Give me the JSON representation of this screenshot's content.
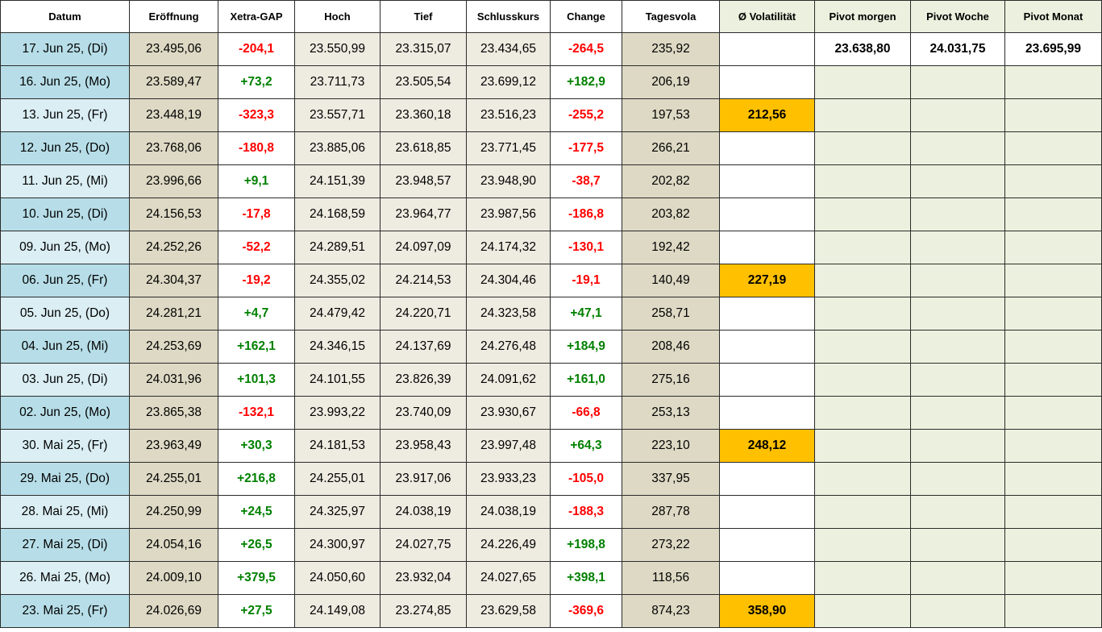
{
  "headers": [
    "Datum",
    "Eröffnung",
    "Xetra-GAP",
    "Hoch",
    "Tief",
    "Schlusskurs",
    "Change",
    "Tagesvola",
    "Ø Volatilität",
    "Pivot morgen",
    "Pivot Woche",
    "Pivot Monat"
  ],
  "rows": [
    {
      "date": "17. Jun 25, (Di)",
      "open": "23.495,06",
      "gap": "-204,1",
      "high": "23.550,99",
      "low": "23.315,07",
      "close": "23.434,65",
      "change": "-264,5",
      "vola": "235,92",
      "avg": "",
      "pm": "23.638,80",
      "pw": "24.031,75",
      "pmo": "23.695,99"
    },
    {
      "date": "16. Jun 25, (Mo)",
      "open": "23.589,47",
      "gap": "+73,2",
      "high": "23.711,73",
      "low": "23.505,54",
      "close": "23.699,12",
      "change": "+182,9",
      "vola": "206,19",
      "avg": "",
      "pm": "",
      "pw": "",
      "pmo": ""
    },
    {
      "date": "13. Jun 25, (Fr)",
      "open": "23.448,19",
      "gap": "-323,3",
      "high": "23.557,71",
      "low": "23.360,18",
      "close": "23.516,23",
      "change": "-255,2",
      "vola": "197,53",
      "avg": "212,56",
      "pm": "",
      "pw": "",
      "pmo": ""
    },
    {
      "date": "12. Jun 25, (Do)",
      "open": "23.768,06",
      "gap": "-180,8",
      "high": "23.885,06",
      "low": "23.618,85",
      "close": "23.771,45",
      "change": "-177,5",
      "vola": "266,21",
      "avg": "",
      "pm": "",
      "pw": "",
      "pmo": ""
    },
    {
      "date": "11. Jun 25, (Mi)",
      "open": "23.996,66",
      "gap": "+9,1",
      "high": "24.151,39",
      "low": "23.948,57",
      "close": "23.948,90",
      "change": "-38,7",
      "vola": "202,82",
      "avg": "",
      "pm": "",
      "pw": "",
      "pmo": ""
    },
    {
      "date": "10. Jun 25, (Di)",
      "open": "24.156,53",
      "gap": "-17,8",
      "high": "24.168,59",
      "low": "23.964,77",
      "close": "23.987,56",
      "change": "-186,8",
      "vola": "203,82",
      "avg": "",
      "pm": "",
      "pw": "",
      "pmo": ""
    },
    {
      "date": "09. Jun 25, (Mo)",
      "open": "24.252,26",
      "gap": "-52,2",
      "high": "24.289,51",
      "low": "24.097,09",
      "close": "24.174,32",
      "change": "-130,1",
      "vola": "192,42",
      "avg": "",
      "pm": "",
      "pw": "",
      "pmo": ""
    },
    {
      "date": "06. Jun 25, (Fr)",
      "open": "24.304,37",
      "gap": "-19,2",
      "high": "24.355,02",
      "low": "24.214,53",
      "close": "24.304,46",
      "change": "-19,1",
      "vola": "140,49",
      "avg": "227,19",
      "pm": "",
      "pw": "",
      "pmo": ""
    },
    {
      "date": "05. Jun 25, (Do)",
      "open": "24.281,21",
      "gap": "+4,7",
      "high": "24.479,42",
      "low": "24.220,71",
      "close": "24.323,58",
      "change": "+47,1",
      "vola": "258,71",
      "avg": "",
      "pm": "",
      "pw": "",
      "pmo": ""
    },
    {
      "date": "04. Jun 25, (Mi)",
      "open": "24.253,69",
      "gap": "+162,1",
      "high": "24.346,15",
      "low": "24.137,69",
      "close": "24.276,48",
      "change": "+184,9",
      "vola": "208,46",
      "avg": "",
      "pm": "",
      "pw": "",
      "pmo": ""
    },
    {
      "date": "03. Jun 25, (Di)",
      "open": "24.031,96",
      "gap": "+101,3",
      "high": "24.101,55",
      "low": "23.826,39",
      "close": "24.091,62",
      "change": "+161,0",
      "vola": "275,16",
      "avg": "",
      "pm": "",
      "pw": "",
      "pmo": ""
    },
    {
      "date": "02. Jun 25, (Mo)",
      "open": "23.865,38",
      "gap": "-132,1",
      "high": "23.993,22",
      "low": "23.740,09",
      "close": "23.930,67",
      "change": "-66,8",
      "vola": "253,13",
      "avg": "",
      "pm": "",
      "pw": "",
      "pmo": ""
    },
    {
      "date": "30. Mai 25, (Fr)",
      "open": "23.963,49",
      "gap": "+30,3",
      "high": "24.181,53",
      "low": "23.958,43",
      "close": "23.997,48",
      "change": "+64,3",
      "vola": "223,10",
      "avg": "248,12",
      "pm": "",
      "pw": "",
      "pmo": ""
    },
    {
      "date": "29. Mai 25, (Do)",
      "open": "24.255,01",
      "gap": "+216,8",
      "high": "24.255,01",
      "low": "23.917,06",
      "close": "23.933,23",
      "change": "-105,0",
      "vola": "337,95",
      "avg": "",
      "pm": "",
      "pw": "",
      "pmo": ""
    },
    {
      "date": "28. Mai 25, (Mi)",
      "open": "24.250,99",
      "gap": "+24,5",
      "high": "24.325,97",
      "low": "24.038,19",
      "close": "24.038,19",
      "change": "-188,3",
      "vola": "287,78",
      "avg": "",
      "pm": "",
      "pw": "",
      "pmo": ""
    },
    {
      "date": "27. Mai 25, (Di)",
      "open": "24.054,16",
      "gap": "+26,5",
      "high": "24.300,97",
      "low": "24.027,75",
      "close": "24.226,49",
      "change": "+198,8",
      "vola": "273,22",
      "avg": "",
      "pm": "",
      "pw": "",
      "pmo": ""
    },
    {
      "date": "26. Mai 25, (Mo)",
      "open": "24.009,10",
      "gap": "+379,5",
      "high": "24.050,60",
      "low": "23.932,04",
      "close": "24.027,65",
      "change": "+398,1",
      "vola": "118,56",
      "avg": "",
      "pm": "",
      "pw": "",
      "pmo": ""
    },
    {
      "date": "23. Mai 25, (Fr)",
      "open": "24.026,69",
      "gap": "+27,5",
      "high": "24.149,08",
      "low": "23.274,85",
      "close": "23.629,58",
      "change": "-369,6",
      "vola": "874,23",
      "avg": "358,90",
      "pm": "",
      "pw": "",
      "pmo": ""
    }
  ],
  "colors": {
    "date_light": "#daeef3",
    "date_dark": "#b7dee8",
    "tan": "#ddd9c4",
    "bone": "#eeece1",
    "green_fill": "#ebf1de",
    "highlight": "#ffc000",
    "negative": "#ff0000",
    "positive": "#008000"
  }
}
